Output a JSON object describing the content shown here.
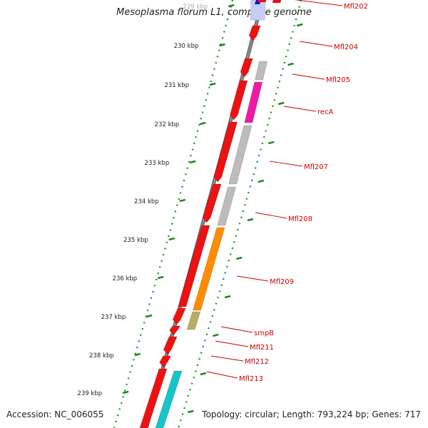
{
  "title": "Mesoplasma florum L1, complete genome",
  "footer": {
    "accession": "Accession: NC_006055",
    "summary": "Topology: circular; Length: 793,224 bp; Genes: 717"
  },
  "colors": {
    "backbone": "#8c8c8c",
    "tick_green": "#1b8a1b",
    "gene_red": "#ee1111",
    "gene_gray": "#bcbcbc",
    "gene_magenta": "#ee1aa5",
    "gene_orange": "#ff8c00",
    "gene_khaki": "#b5ad62",
    "gene_cyan": "#16c5cc",
    "gene_blue": "#1414cc",
    "label_red": "#cc0000"
  },
  "scale_labels": [
    "229 kbp",
    "230 kbp",
    "231 kbp",
    "232 kbp",
    "233 kbp",
    "234 kbp",
    "235 kbp",
    "236 kbp",
    "237 kbp",
    "238 kbp",
    "239 kbp"
  ],
  "gene_labels": [
    "Mfl202",
    "Mfl204",
    "Mfl205",
    "recA",
    "Mfl207",
    "Mfl208",
    "Mfl209",
    "smpB",
    "Mfl211",
    "Mfl212",
    "Mfl213"
  ]
}
